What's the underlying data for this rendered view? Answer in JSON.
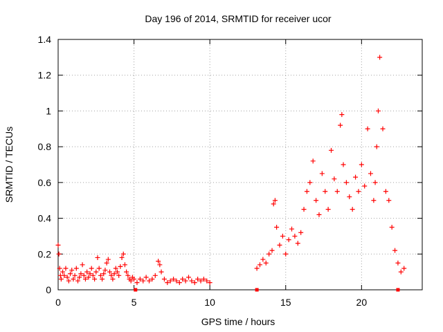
{
  "chart_data": {
    "type": "scatter",
    "title": "Day 196 of 2014, SRMTID for receiver ucor",
    "xlabel": "GPS time / hours",
    "ylabel": "SRMTID / TECUs",
    "xlim": [
      0,
      24.0
    ],
    "ylim": [
      0,
      1.4
    ],
    "xticks": [
      0,
      5,
      10,
      15,
      20
    ],
    "xtick_labels": [
      "0",
      "5",
      "10",
      "15",
      "20"
    ],
    "yticks": [
      0,
      0.2,
      0.4,
      0.6,
      0.8,
      1.0,
      1.2,
      1.4
    ],
    "ytick_labels": [
      "0",
      "0.2",
      "0.4",
      "0.6",
      "0.8",
      "1",
      "1.2",
      "1.4"
    ],
    "grid": true,
    "marker": "+",
    "color": "#ff0000",
    "gap_markers_x": [
      5.1,
      13.1,
      22.4
    ],
    "series": [
      {
        "name": "SRMTID",
        "x": [
          0.0,
          0.05,
          0.1,
          0.15,
          0.2,
          0.3,
          0.4,
          0.5,
          0.6,
          0.7,
          0.8,
          0.9,
          1.0,
          1.1,
          1.2,
          1.3,
          1.4,
          1.5,
          1.6,
          1.7,
          1.8,
          1.9,
          2.0,
          2.1,
          2.2,
          2.3,
          2.4,
          2.5,
          2.6,
          2.7,
          2.8,
          2.9,
          3.0,
          3.1,
          3.2,
          3.3,
          3.4,
          3.5,
          3.6,
          3.7,
          3.8,
          3.9,
          4.0,
          4.1,
          4.2,
          4.3,
          4.4,
          4.5,
          4.6,
          4.7,
          4.8,
          4.9,
          5.0,
          5.2,
          5.4,
          5.6,
          5.8,
          6.0,
          6.2,
          6.4,
          6.6,
          6.7,
          6.8,
          7.0,
          7.2,
          7.4,
          7.6,
          7.8,
          8.0,
          8.2,
          8.4,
          8.6,
          8.8,
          9.0,
          9.2,
          9.4,
          9.6,
          9.8,
          10.0,
          13.1,
          13.3,
          13.5,
          13.7,
          13.9,
          14.1,
          14.2,
          14.3,
          14.4,
          14.6,
          14.8,
          15.0,
          15.2,
          15.4,
          15.6,
          15.8,
          16.0,
          16.2,
          16.4,
          16.6,
          16.8,
          17.0,
          17.2,
          17.4,
          17.6,
          17.8,
          18.0,
          18.2,
          18.4,
          18.6,
          18.7,
          18.8,
          19.0,
          19.2,
          19.4,
          19.6,
          19.8,
          20.0,
          20.2,
          20.4,
          20.6,
          20.8,
          20.9,
          21.0,
          21.1,
          21.2,
          21.4,
          21.6,
          21.8,
          22.0,
          22.2,
          22.4,
          22.6,
          22.8
        ],
        "y": [
          0.25,
          0.2,
          0.12,
          0.08,
          0.06,
          0.1,
          0.08,
          0.12,
          0.07,
          0.05,
          0.09,
          0.11,
          0.06,
          0.08,
          0.12,
          0.05,
          0.07,
          0.09,
          0.14,
          0.08,
          0.06,
          0.1,
          0.07,
          0.09,
          0.12,
          0.08,
          0.06,
          0.1,
          0.18,
          0.12,
          0.08,
          0.06,
          0.09,
          0.11,
          0.15,
          0.17,
          0.1,
          0.08,
          0.06,
          0.09,
          0.12,
          0.1,
          0.08,
          0.13,
          0.18,
          0.2,
          0.14,
          0.1,
          0.08,
          0.06,
          0.05,
          0.07,
          0.06,
          0.04,
          0.06,
          0.05,
          0.07,
          0.05,
          0.06,
          0.08,
          0.16,
          0.14,
          0.1,
          0.06,
          0.04,
          0.05,
          0.06,
          0.05,
          0.04,
          0.06,
          0.05,
          0.07,
          0.05,
          0.04,
          0.06,
          0.05,
          0.06,
          0.05,
          0.04,
          0.12,
          0.14,
          0.17,
          0.15,
          0.2,
          0.22,
          0.48,
          0.5,
          0.35,
          0.25,
          0.3,
          0.2,
          0.28,
          0.34,
          0.3,
          0.26,
          0.32,
          0.45,
          0.55,
          0.6,
          0.72,
          0.5,
          0.42,
          0.65,
          0.55,
          0.45,
          0.78,
          0.62,
          0.55,
          0.92,
          0.98,
          0.7,
          0.6,
          0.52,
          0.45,
          0.63,
          0.55,
          0.7,
          0.58,
          0.9,
          0.65,
          0.5,
          0.6,
          0.8,
          1.0,
          1.3,
          0.9,
          0.55,
          0.5,
          0.35,
          0.22,
          0.15,
          0.1,
          0.12
        ]
      }
    ]
  }
}
